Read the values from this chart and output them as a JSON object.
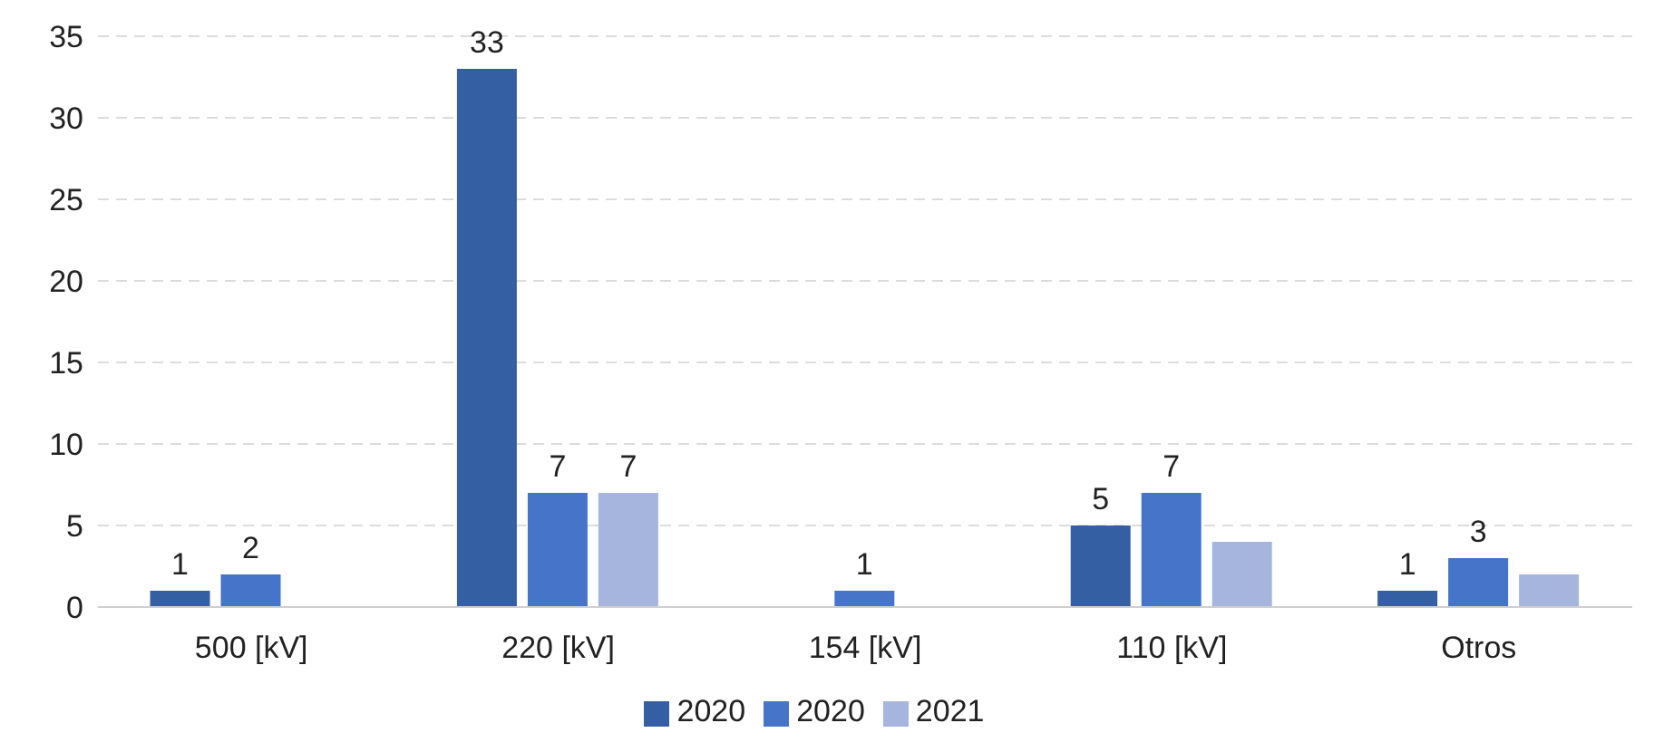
{
  "chart_data": {
    "type": "bar",
    "categories": [
      "500 [kV]",
      "220 [kV]",
      "154 [kV]",
      "110 [kV]",
      "Otros"
    ],
    "series": [
      {
        "name": "2020",
        "color": "#355fa3",
        "values": [
          1,
          33,
          null,
          5,
          1
        ],
        "value_labels": [
          "1",
          "33",
          null,
          "5",
          "1"
        ]
      },
      {
        "name": "2020",
        "color": "#4674c8",
        "values": [
          2,
          7,
          1,
          7,
          3
        ],
        "value_labels": [
          "2",
          "7",
          "1",
          "7",
          "3"
        ]
      },
      {
        "name": "2021",
        "color": "#a6b5de",
        "values": [
          null,
          7,
          null,
          4,
          2
        ],
        "value_labels": [
          null,
          "7",
          null,
          null,
          null
        ]
      }
    ],
    "ylim": [
      0,
      35
    ],
    "yticks": [
      0,
      5,
      10,
      15,
      20,
      25,
      30,
      35
    ],
    "grid": "y",
    "legend": "bottom"
  }
}
